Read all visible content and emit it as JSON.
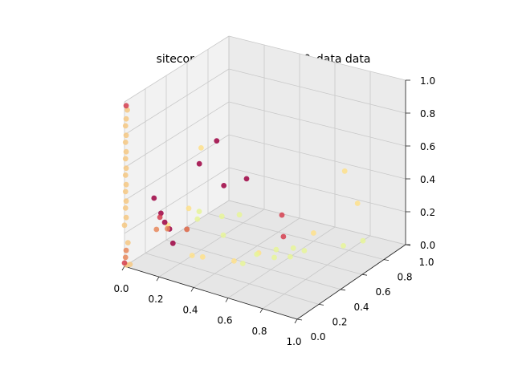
{
  "chart_data": {
    "type": "scatter",
    "projection": "3d",
    "title": "sitecore k=6 kMeans - vt60_data data",
    "xlabel": "",
    "ylabel": "",
    "zlabel": "",
    "xlim": [
      0,
      1
    ],
    "ylim": [
      0,
      1
    ],
    "zlim": [
      0,
      1
    ],
    "grid": true,
    "legend": "none",
    "x_ticks": [
      "0.0",
      "0.2",
      "0.4",
      "0.6",
      "0.8",
      "1.0"
    ],
    "y_ticks": [
      "0.0",
      "0.2",
      "0.4",
      "0.6",
      "0.8",
      "1.0"
    ],
    "z_ticks": [
      "0.0",
      "0.2",
      "0.4",
      "0.6",
      "0.8",
      "1.0"
    ],
    "cluster_colors": [
      "#9e0142",
      "#d53e4f",
      "#e8875a",
      "#f6c882",
      "#fee08b",
      "#e6f598"
    ],
    "points": [
      [
        0.05,
        0.2,
        0.35,
        0
      ],
      [
        0.12,
        0.15,
        0.3,
        0
      ],
      [
        0.2,
        0.1,
        0.25,
        0
      ],
      [
        0.25,
        0.05,
        0.2,
        0
      ],
      [
        0.3,
        0.1,
        0.28,
        0
      ],
      [
        0.16,
        0.12,
        0.27,
        0
      ],
      [
        0.35,
        0.3,
        0.75,
        0
      ],
      [
        0.22,
        0.35,
        0.55,
        0
      ],
      [
        0.4,
        0.5,
        0.45,
        0
      ],
      [
        0.3,
        0.45,
        0.4,
        0
      ],
      [
        0.0,
        0.0,
        0.02,
        1
      ],
      [
        0.01,
        0.0,
        0.98,
        1
      ],
      [
        0.55,
        0.6,
        0.1,
        1
      ],
      [
        0.36,
        0.9,
        0.05,
        1
      ],
      [
        0.12,
        0.14,
        0.28,
        1
      ],
      [
        0.0,
        0.01,
        0.05,
        2
      ],
      [
        0.01,
        0.0,
        0.1,
        2
      ],
      [
        0.3,
        0.1,
        0.28,
        2
      ],
      [
        0.1,
        0.14,
        0.2,
        2
      ],
      [
        0.2,
        0.08,
        0.26,
        2
      ],
      [
        0.01,
        0.01,
        0.95,
        3
      ],
      [
        0.01,
        0.0,
        0.9,
        3
      ],
      [
        0.0,
        0.01,
        0.85,
        3
      ],
      [
        0.01,
        0.0,
        0.8,
        3
      ],
      [
        0.0,
        0.01,
        0.75,
        3
      ],
      [
        0.01,
        0.0,
        0.7,
        3
      ],
      [
        0.0,
        0.01,
        0.65,
        3
      ],
      [
        0.01,
        0.0,
        0.6,
        3
      ],
      [
        0.0,
        0.01,
        0.55,
        3
      ],
      [
        0.01,
        0.0,
        0.5,
        3
      ],
      [
        0.0,
        0.01,
        0.45,
        3
      ],
      [
        0.01,
        0.0,
        0.4,
        3
      ],
      [
        0.0,
        0.01,
        0.35,
        3
      ],
      [
        0.01,
        0.0,
        0.3,
        3
      ],
      [
        0.0,
        0.0,
        0.25,
        3
      ],
      [
        0.02,
        0.0,
        0.15,
        3
      ],
      [
        0.0,
        0.02,
        0.0,
        3
      ],
      [
        0.02,
        0.02,
        0.01,
        3
      ],
      [
        0.3,
        0.15,
        0.1,
        4
      ],
      [
        0.33,
        0.2,
        0.08,
        4
      ],
      [
        0.45,
        0.3,
        0.05,
        4
      ],
      [
        0.5,
        0.45,
        0.05,
        4
      ],
      [
        0.9,
        0.6,
        0.6,
        4
      ],
      [
        0.85,
        0.8,
        0.3,
        4
      ],
      [
        0.6,
        0.8,
        0.05,
        4
      ],
      [
        0.2,
        0.4,
        0.62,
        4
      ],
      [
        0.25,
        0.2,
        0.35,
        4
      ],
      [
        0.16,
        0.15,
        0.24,
        4
      ],
      [
        0.38,
        0.3,
        0.3,
        5
      ],
      [
        0.4,
        0.28,
        0.2,
        5
      ],
      [
        0.42,
        0.4,
        0.28,
        5
      ],
      [
        0.5,
        0.3,
        0.05,
        5
      ],
      [
        0.6,
        0.45,
        0.1,
        5
      ],
      [
        0.7,
        0.55,
        0.08,
        5
      ],
      [
        0.65,
        0.5,
        0.05,
        5
      ],
      [
        0.8,
        0.75,
        0.05,
        5
      ],
      [
        0.85,
        0.85,
        0.05,
        5
      ],
      [
        0.55,
        0.35,
        0.1,
        5
      ],
      [
        0.62,
        0.4,
        0.08,
        5
      ],
      [
        0.68,
        0.48,
        0.12,
        5
      ],
      [
        0.3,
        0.2,
        0.3,
        5
      ],
      [
        0.28,
        0.25,
        0.32,
        5
      ]
    ]
  }
}
